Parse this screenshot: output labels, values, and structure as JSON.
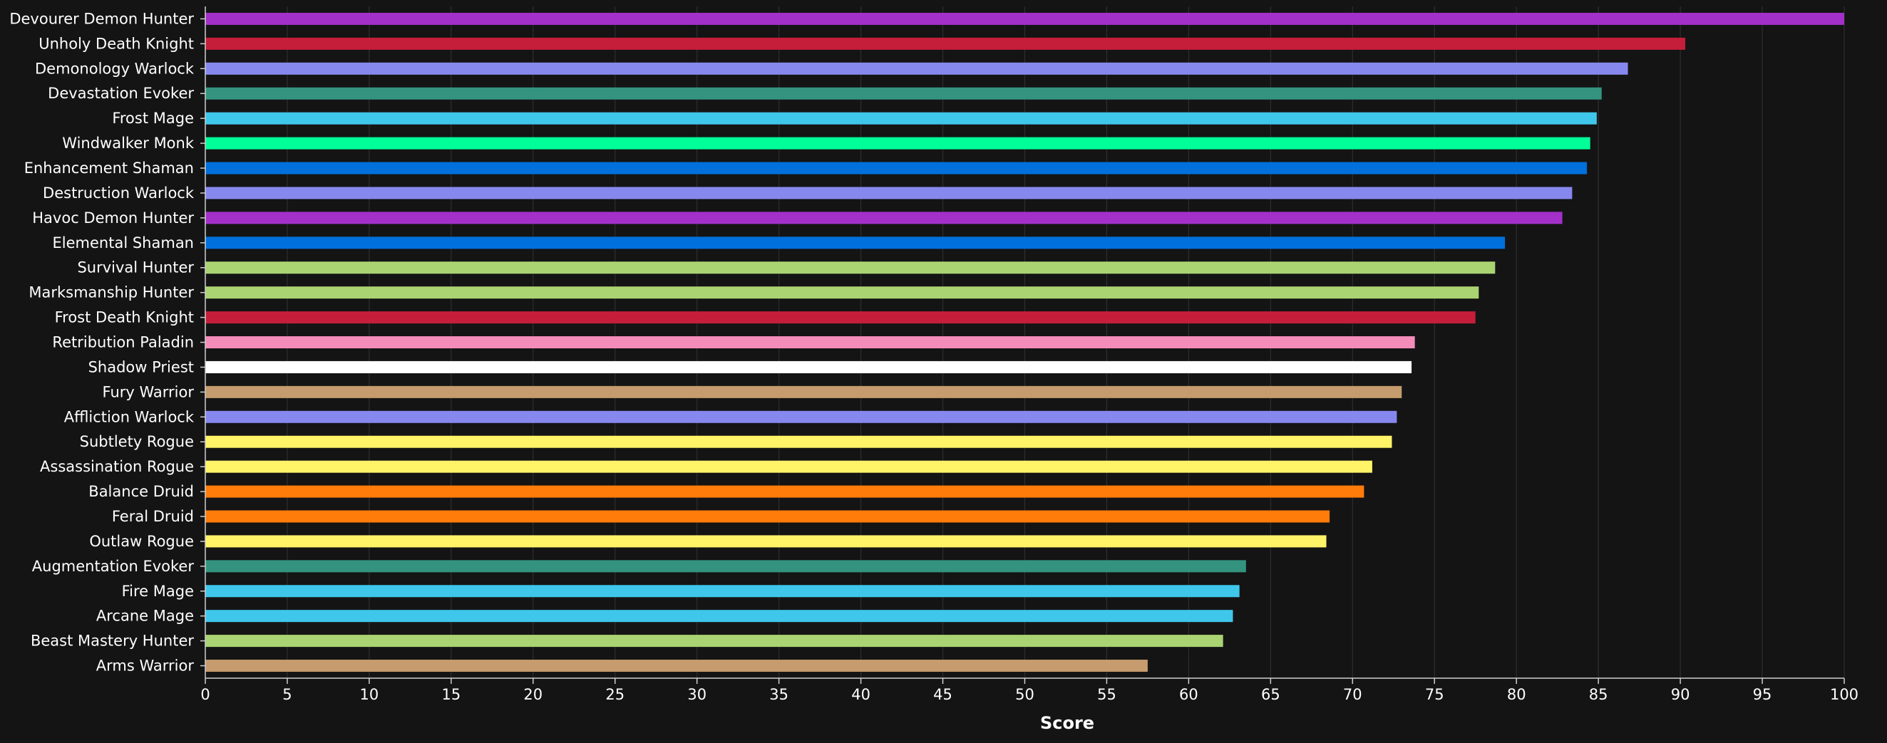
{
  "chart_data": {
    "type": "bar",
    "orientation": "horizontal",
    "xlabel": "Score",
    "ylabel": "",
    "xlim": [
      0,
      100
    ],
    "xticks": [
      0,
      5,
      10,
      15,
      20,
      25,
      30,
      35,
      40,
      45,
      50,
      55,
      60,
      65,
      70,
      75,
      80,
      85,
      90,
      95,
      100
    ],
    "grid": "vertical",
    "background_color": "#141414",
    "grid_color": "#2e2e2e",
    "categories": [
      "Devourer Demon Hunter",
      "Unholy Death Knight",
      "Demonology Warlock",
      "Devastation Evoker",
      "Frost Mage",
      "Windwalker Monk",
      "Enhancement Shaman",
      "Destruction Warlock",
      "Havoc Demon Hunter",
      "Elemental Shaman",
      "Survival Hunter",
      "Marksmanship Hunter",
      "Frost Death Knight",
      "Retribution Paladin",
      "Shadow Priest",
      "Fury Warrior",
      "Affliction Warlock",
      "Subtlety Rogue",
      "Assassination Rogue",
      "Balance Druid",
      "Feral Druid",
      "Outlaw Rogue",
      "Augmentation Evoker",
      "Fire Mage",
      "Arcane Mage",
      "Beast Mastery Hunter",
      "Arms Warrior"
    ],
    "values": [
      100,
      90.3,
      86.8,
      85.2,
      84.9,
      84.5,
      84.3,
      83.4,
      82.8,
      79.3,
      78.7,
      77.7,
      77.5,
      73.8,
      73.6,
      73.0,
      72.7,
      72.4,
      71.2,
      70.7,
      68.6,
      68.4,
      63.5,
      63.1,
      62.7,
      62.1,
      57.5
    ],
    "colors": [
      "#a330c9",
      "#c41e3a",
      "#8788ee",
      "#33937f",
      "#3fc7eb",
      "#00ff98",
      "#0070dd",
      "#8788ee",
      "#a330c9",
      "#0070dd",
      "#aad372",
      "#aad372",
      "#c41e3a",
      "#f48cba",
      "#ffffff",
      "#c69b6d",
      "#8788ee",
      "#fff468",
      "#fff468",
      "#ff7c0a",
      "#ff7c0a",
      "#fff468",
      "#33937f",
      "#3fc7eb",
      "#3fc7eb",
      "#aad372",
      "#c69b6d"
    ]
  }
}
